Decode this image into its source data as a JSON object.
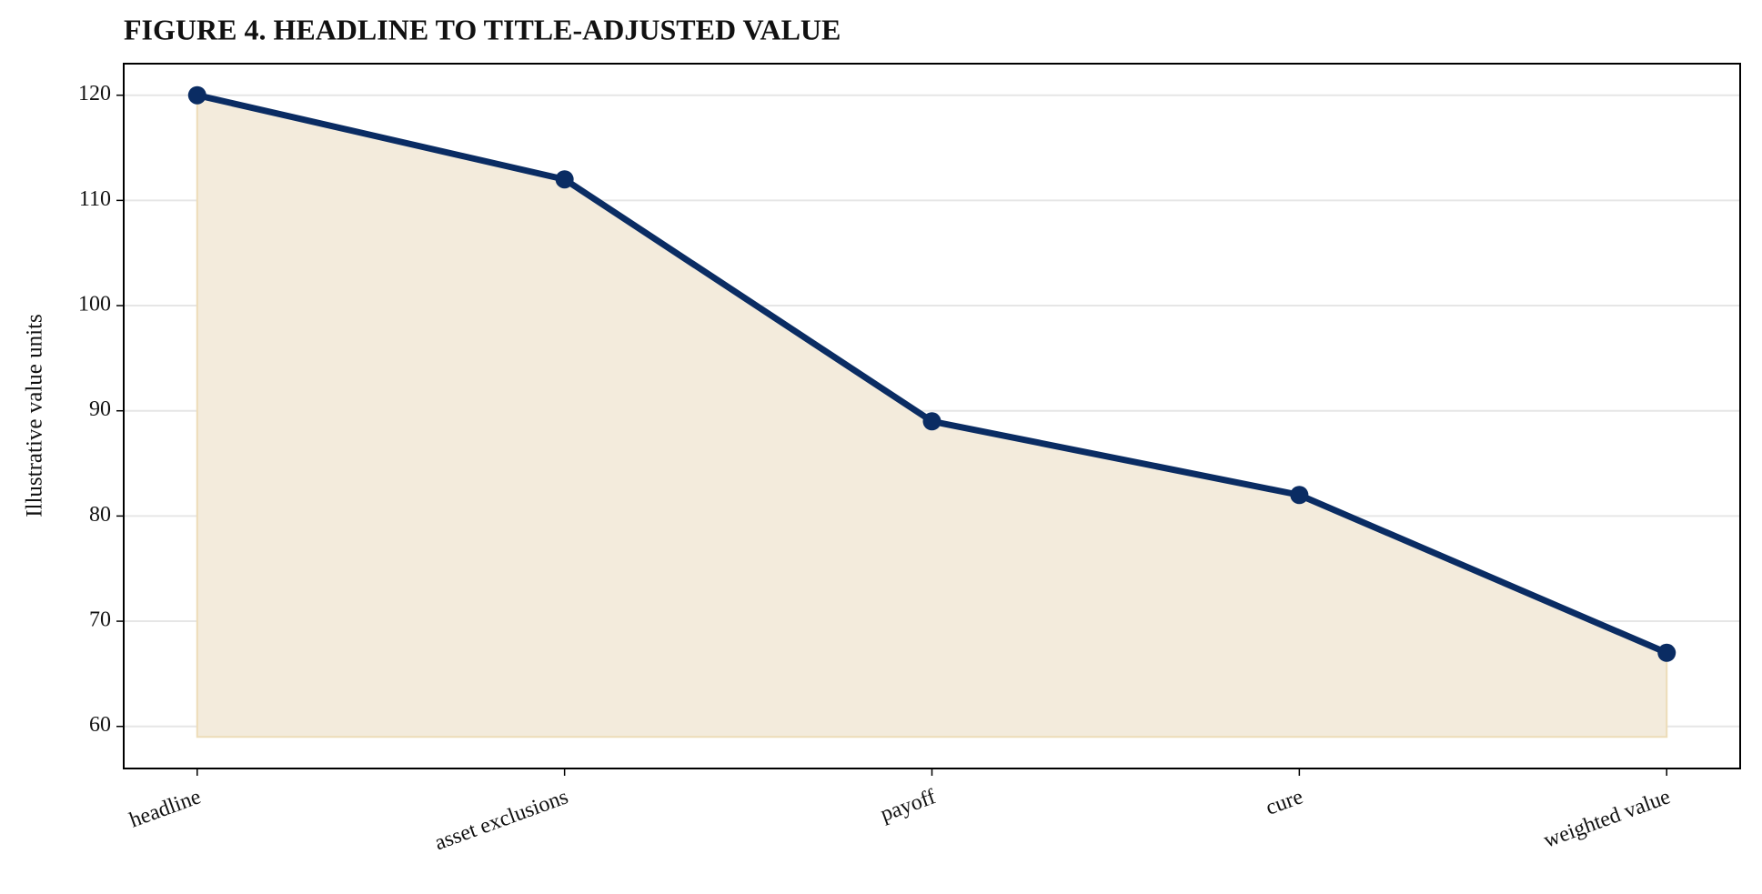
{
  "chart_data": {
    "type": "line",
    "title": "FIGURE 4. HEADLINE TO TITLE-ADJUSTED VALUE",
    "y_label": "Illustrative value units",
    "categories": [
      "headline",
      "asset exclusions",
      "payoff",
      "cure",
      "weighted value"
    ],
    "series": [
      {
        "name": "value",
        "color": "#0a2c63",
        "values": [
          120,
          112,
          89,
          82,
          67
        ]
      }
    ],
    "area_baseline": 59,
    "area_color": "#f3ebdc",
    "ylim": [
      56,
      123
    ],
    "yticks": [
      60,
      70,
      80,
      90,
      100,
      110,
      120
    ],
    "grid": true
  }
}
